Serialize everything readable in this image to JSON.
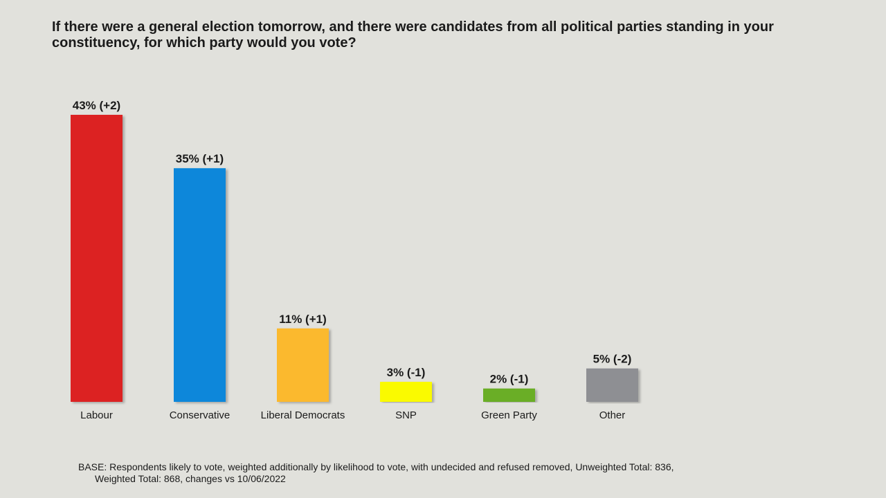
{
  "chart_data": {
    "type": "bar",
    "title": "If there were a general election tomorrow, and there were candidates from all political parties standing in your constituency, for which party would you vote?",
    "categories": [
      "Labour",
      "Conservative",
      "Liberal Democrats",
      "SNP",
      "Green Party",
      "Other"
    ],
    "values": [
      43,
      35,
      11,
      3,
      2,
      5
    ],
    "changes": [
      2,
      1,
      1,
      -1,
      -1,
      -2
    ],
    "data_labels": [
      "43% (+2)",
      "35% (+1)",
      "11% (+1)",
      "3% (-1)",
      "2% (-1)",
      "5% (-2)"
    ],
    "colors": [
      "#dc2420",
      "#0a87da",
      "#fbb92f",
      "#fafa05",
      "#6aae27",
      "#8e8f93"
    ],
    "xlabel": "",
    "ylabel": "",
    "ylim": [
      0,
      43
    ],
    "grid": false,
    "legend": "none"
  },
  "footnote": {
    "line1": "BASE: Respondents likely to vote, weighted additionally by likelihood to vote, with undecided and refused removed, Unweighted Total: 836,",
    "line2": "Weighted Total: 868, changes vs 10/06/2022"
  }
}
